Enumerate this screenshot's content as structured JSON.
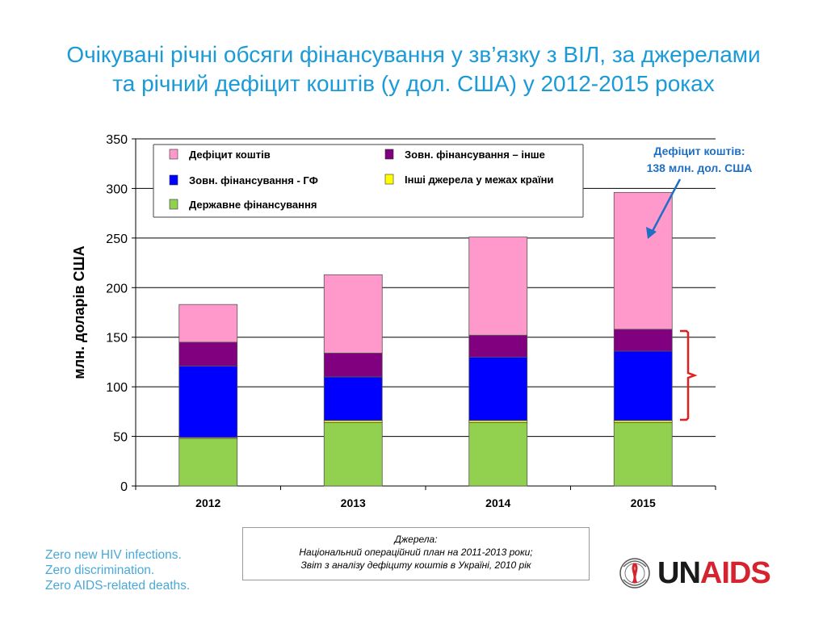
{
  "title": {
    "line1": "Очікувані річні обсяги фінансування у зв’язку з ВІЛ, за джерелами",
    "line2": "та річний дефіцит коштів (у дол. США) у 2012-2015 роках"
  },
  "chart_data": {
    "type": "bar",
    "stacked": true,
    "categories": [
      "2012",
      "2013",
      "2014",
      "2015"
    ],
    "ylabel": "млн. доларів США",
    "xlabel": "",
    "ylim": [
      0,
      350
    ],
    "yticks": [
      0,
      50,
      100,
      150,
      200,
      250,
      300,
      350
    ],
    "grid": true,
    "series": [
      {
        "name": "Державне фінансування",
        "color": "#92d050",
        "values": [
          48,
          64,
          64,
          64
        ]
      },
      {
        "name": "Інші джерела у межах країни",
        "color": "#ffff00",
        "values": [
          1,
          2,
          2,
          2
        ]
      },
      {
        "name": "Зовн. фінансування - ГФ",
        "color": "#0000ff",
        "values": [
          72,
          44,
          64,
          70
        ]
      },
      {
        "name": "Зовн. фінансування – інше",
        "color": "#800080",
        "values": [
          24,
          24,
          22,
          22
        ]
      },
      {
        "name": "Дефіцит коштів",
        "color": "#ff99cc",
        "values": [
          38,
          79,
          99,
          138
        ]
      }
    ],
    "legend": {
      "placement": "top-left",
      "columns": [
        [
          "Дефіцит коштів",
          "Зовн. фінансування - ГФ",
          "Державне фінансування"
        ],
        [
          "Зовн. фінансування – інше",
          "Інші джерела у межах країни"
        ]
      ]
    },
    "annotations": [
      {
        "text_line1": "Дефіцит коштів:",
        "text_line2": "138 млн. дол. США",
        "color": "#1f6fc5",
        "target_category": "2015"
      }
    ]
  },
  "sources": {
    "line1": "Джерела:",
    "line2": "Національний операційний план на 2011-2013 роки;",
    "line3": "Звіт з аналізу дефіциту коштів в Україні, 2010 рік"
  },
  "slogan": {
    "line1": "Zero new HIV infections.",
    "line2": "Zero discrimination.",
    "line3": "Zero AIDS-related deaths."
  },
  "logo": {
    "part1": "UN",
    "part2": "AIDS"
  }
}
